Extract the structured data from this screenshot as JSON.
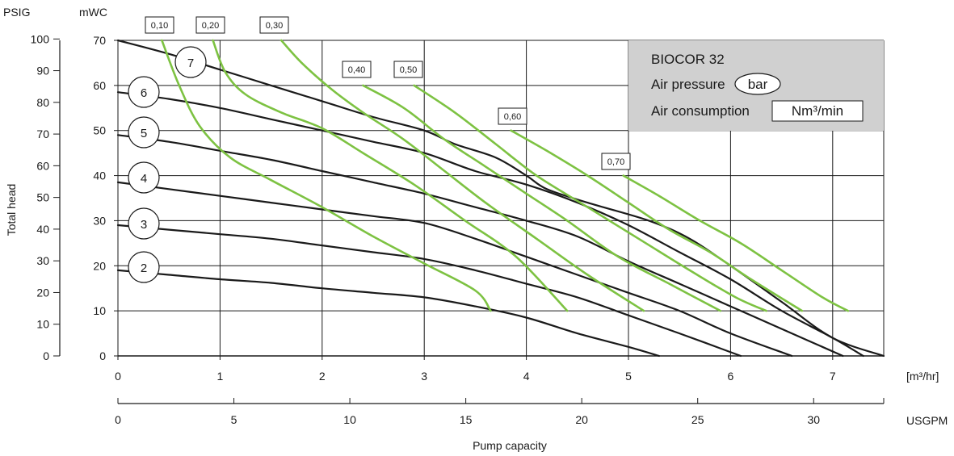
{
  "chart_data": {
    "type": "line",
    "xlabel": "Pump capacity",
    "ylabel": "Total head",
    "x_unit_primary": "[m³/hr]",
    "x_unit_secondary": "USGPM",
    "y_unit_psig": "PSIG",
    "y_unit_mwc": "mWC",
    "xlim_m3hr": [
      0,
      7.5
    ],
    "ylim_mwc": [
      0,
      70
    ],
    "x_ticks_m3hr": [
      "0",
      "1",
      "2",
      "3",
      "4",
      "5",
      "6",
      "7"
    ],
    "x_ticks_usgpm": [
      "0",
      "5",
      "10",
      "15",
      "20",
      "25",
      "30"
    ],
    "y_ticks_mwc": [
      "0",
      "10",
      "20",
      "30",
      "40",
      "50",
      "60",
      "70"
    ],
    "y_ticks_psig": [
      "0",
      "10",
      "20",
      "30",
      "40",
      "50",
      "60",
      "70",
      "80",
      "90",
      "100"
    ],
    "grid": true,
    "legend": {
      "title": "BIOCOR 32",
      "air_pressure_label": "Air pressure",
      "air_pressure_unit": "bar",
      "air_consumption_label": "Air consumption",
      "air_consumption_unit": "Nm³/min",
      "background": "#d0d0d0",
      "placement": "top-right"
    },
    "series": [
      {
        "name": "7",
        "color": "#1a1a1a",
        "points": [
          [
            0,
            70
          ],
          [
            0.5,
            67
          ],
          [
            1,
            63.5
          ],
          [
            1.5,
            60
          ],
          [
            2,
            56.5
          ],
          [
            2.5,
            53
          ],
          [
            3,
            50
          ],
          [
            3.3,
            47
          ],
          [
            3.7,
            44
          ],
          [
            4,
            40
          ],
          [
            4.2,
            37
          ],
          [
            4.6,
            34
          ],
          [
            5.2,
            30
          ],
          [
            5.6,
            26
          ],
          [
            6.0,
            20
          ],
          [
            6.5,
            12
          ],
          [
            7,
            4
          ],
          [
            7.5,
            0
          ]
        ]
      },
      {
        "name": "6",
        "color": "#1a1a1a",
        "points": [
          [
            0,
            58.5
          ],
          [
            0.5,
            57
          ],
          [
            1,
            55
          ],
          [
            1.5,
            52.5
          ],
          [
            2,
            50
          ],
          [
            2.5,
            47.5
          ],
          [
            3,
            45
          ],
          [
            3.5,
            41
          ],
          [
            4,
            38
          ],
          [
            4.5,
            34
          ],
          [
            5,
            29
          ],
          [
            5.5,
            23
          ],
          [
            6,
            17
          ],
          [
            6.5,
            10
          ],
          [
            7,
            4
          ],
          [
            7.3,
            0
          ]
        ]
      },
      {
        "name": "5",
        "color": "#1a1a1a",
        "points": [
          [
            0,
            49
          ],
          [
            0.5,
            47.5
          ],
          [
            1,
            45.5
          ],
          [
            1.5,
            43.5
          ],
          [
            2,
            41
          ],
          [
            2.5,
            38.5
          ],
          [
            3,
            36
          ],
          [
            3.5,
            33
          ],
          [
            4,
            30
          ],
          [
            4.5,
            26.5
          ],
          [
            5,
            21
          ],
          [
            5.5,
            16
          ],
          [
            6,
            11
          ],
          [
            6.5,
            6
          ],
          [
            7.1,
            0
          ]
        ]
      },
      {
        "name": "4",
        "color": "#1a1a1a",
        "points": [
          [
            0,
            38.5
          ],
          [
            0.5,
            37
          ],
          [
            1,
            35.5
          ],
          [
            1.5,
            34
          ],
          [
            2,
            32.5
          ],
          [
            2.5,
            31
          ],
          [
            3,
            29.5
          ],
          [
            3.5,
            26
          ],
          [
            4,
            22
          ],
          [
            4.5,
            18
          ],
          [
            5,
            14
          ],
          [
            5.5,
            10
          ],
          [
            6,
            5
          ],
          [
            6.6,
            0
          ]
        ]
      },
      {
        "name": "3",
        "color": "#1a1a1a",
        "points": [
          [
            0,
            29
          ],
          [
            0.5,
            28
          ],
          [
            1,
            27
          ],
          [
            1.5,
            26
          ],
          [
            2,
            24.5
          ],
          [
            2.5,
            23
          ],
          [
            3,
            21.5
          ],
          [
            3.5,
            19
          ],
          [
            4,
            16
          ],
          [
            4.5,
            13
          ],
          [
            5,
            9
          ],
          [
            5.5,
            5
          ],
          [
            6.1,
            0
          ]
        ]
      },
      {
        "name": "2",
        "color": "#1a1a1a",
        "points": [
          [
            0,
            19
          ],
          [
            0.5,
            18
          ],
          [
            1,
            17
          ],
          [
            1.5,
            16.2
          ],
          [
            2,
            15
          ],
          [
            2.5,
            14
          ],
          [
            3,
            13
          ],
          [
            3.5,
            11
          ],
          [
            4,
            8.5
          ],
          [
            4.5,
            5
          ],
          [
            5,
            2
          ],
          [
            5.3,
            0
          ]
        ]
      },
      {
        "name": "0,10",
        "color": "#7dc242",
        "points": [
          [
            0.43,
            70
          ],
          [
            0.6,
            60
          ],
          [
            0.8,
            51
          ],
          [
            1.1,
            44
          ],
          [
            1.5,
            39
          ],
          [
            2,
            33
          ],
          [
            2.5,
            26.5
          ],
          [
            3,
            20.5
          ],
          [
            3.5,
            14.5
          ],
          [
            3.65,
            10
          ]
        ]
      },
      {
        "name": "0,20",
        "color": "#7dc242",
        "points": [
          [
            0.93,
            70
          ],
          [
            1.05,
            63
          ],
          [
            1.25,
            58
          ],
          [
            1.6,
            54
          ],
          [
            2,
            50.5
          ],
          [
            2.4,
            45
          ],
          [
            2.9,
            38
          ],
          [
            3.4,
            30
          ],
          [
            3.9,
            22
          ],
          [
            4.4,
            10
          ]
        ]
      },
      {
        "name": "0,30",
        "color": "#7dc242",
        "points": [
          [
            1.6,
            70
          ],
          [
            1.8,
            65
          ],
          [
            2.1,
            59
          ],
          [
            2.4,
            54
          ],
          [
            2.8,
            48
          ],
          [
            3.2,
            41
          ],
          [
            3.6,
            34
          ],
          [
            4.1,
            26
          ],
          [
            4.6,
            18
          ],
          [
            5.15,
            10
          ]
        ]
      },
      {
        "name": "0,40",
        "color": "#7dc242",
        "points": [
          [
            2.4,
            60
          ],
          [
            2.8,
            55
          ],
          [
            3.2,
            48
          ],
          [
            3.6,
            42
          ],
          [
            4,
            36
          ],
          [
            4.4,
            30
          ],
          [
            4.9,
            22
          ],
          [
            5.4,
            16
          ],
          [
            5.9,
            10
          ]
        ]
      },
      {
        "name": "0,50",
        "color": "#7dc242",
        "points": [
          [
            2.9,
            60
          ],
          [
            3.3,
            54
          ],
          [
            3.7,
            47
          ],
          [
            4.1,
            40
          ],
          [
            4.6,
            33
          ],
          [
            5.1,
            26
          ],
          [
            5.6,
            19
          ],
          [
            6.05,
            13
          ],
          [
            6.35,
            10
          ]
        ]
      },
      {
        "name": "0,60",
        "color": "#7dc242",
        "points": [
          [
            3.85,
            50
          ],
          [
            4.2,
            45.5
          ],
          [
            4.6,
            40
          ],
          [
            5,
            34
          ],
          [
            5.4,
            28
          ],
          [
            5.8,
            23
          ],
          [
            6.2,
            17
          ],
          [
            6.7,
            10
          ]
        ]
      },
      {
        "name": "0,70",
        "color": "#7dc242",
        "points": [
          [
            4.95,
            40
          ],
          [
            5.3,
            35.5
          ],
          [
            5.7,
            30
          ],
          [
            6.1,
            25
          ],
          [
            6.5,
            19
          ],
          [
            6.9,
            13
          ],
          [
            7.15,
            10
          ]
        ]
      }
    ],
    "speed_labels": [
      "7",
      "6",
      "5",
      "4",
      "3",
      "2"
    ],
    "pressure_labels": [
      "0,10",
      "0,20",
      "0,30",
      "0,40",
      "0,50",
      "0,60",
      "0,70"
    ]
  }
}
